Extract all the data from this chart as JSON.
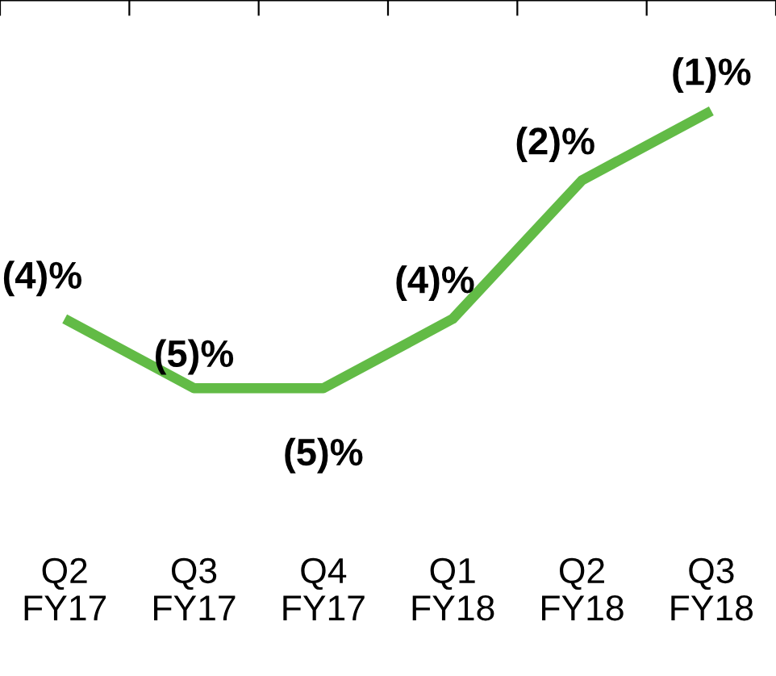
{
  "chart_data": {
    "type": "line",
    "categories": [
      "Q2\nFY17",
      "Q3\nFY17",
      "Q4\nFY17",
      "Q1\nFY18",
      "Q2\nFY18",
      "Q3\nFY18"
    ],
    "series": [
      {
        "color": "#62bb46",
        "values": [
          -4,
          -5,
          -5,
          -4,
          -2,
          -1
        ],
        "value_labels": [
          "(4)%",
          "(5)%",
          "(5)%",
          "(4)%",
          "(2)%",
          "(1)%"
        ]
      }
    ],
    "grid": false,
    "legend": false,
    "marker": "none",
    "line_style": "solid"
  }
}
